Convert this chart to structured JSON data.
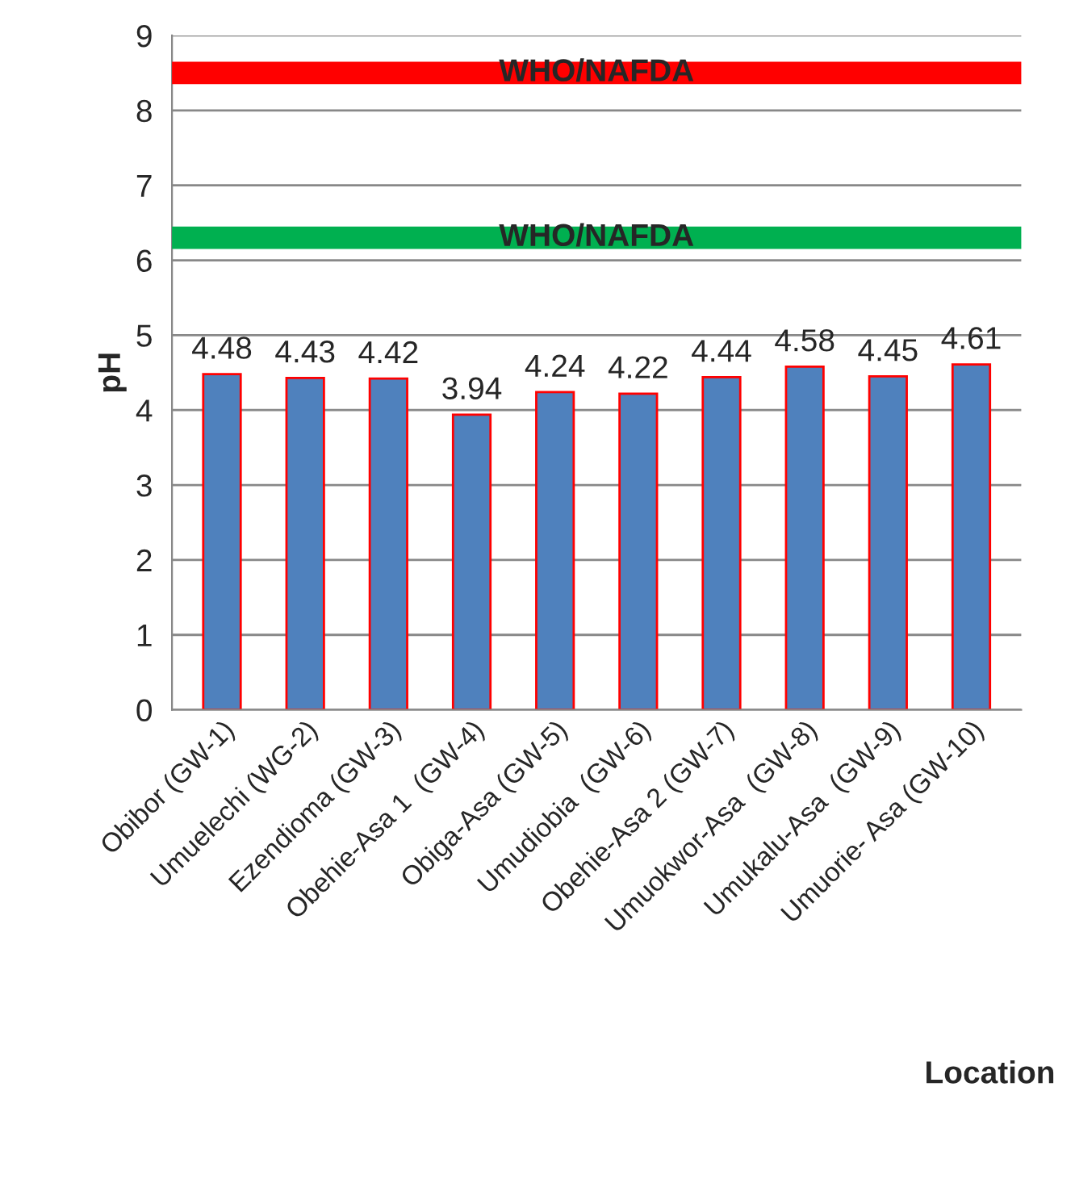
{
  "chart_data": {
    "type": "bar",
    "xlabel": "Location",
    "ylabel": "pH",
    "categories": [
      "Obibor (GW-1)",
      "Umuelechi (WG-2)",
      "Ezendioma (GW-3)",
      "Obehie-Asa 1  (GW-4)",
      "Obiga-Asa (GW-5)",
      "Umudiobia  (GW-6)",
      "Obehie-Asa 2 (GW-7)",
      "Umuokwor-Asa  (GW-8)",
      "Umukalu-Asa  (GW-9)",
      "Umuorie- Asa (GW-10)"
    ],
    "values": [
      4.48,
      4.43,
      4.42,
      3.94,
      4.24,
      4.22,
      4.44,
      4.58,
      4.45,
      4.61
    ],
    "color": "#4f81bd",
    "data_labels": true,
    "ylim": [
      0,
      9
    ],
    "yticks": [
      0,
      1,
      2,
      3,
      4,
      5,
      6,
      7,
      8,
      9
    ],
    "grid": "y",
    "legend": false,
    "ref_lines": [
      {
        "axis": "y",
        "value": 8.5,
        "label": "WHO/NAFDA",
        "color": "#ff0000"
      },
      {
        "axis": "y",
        "value": 6.3,
        "label": "WHO/NAFDA",
        "color": "#00b050"
      }
    ]
  }
}
